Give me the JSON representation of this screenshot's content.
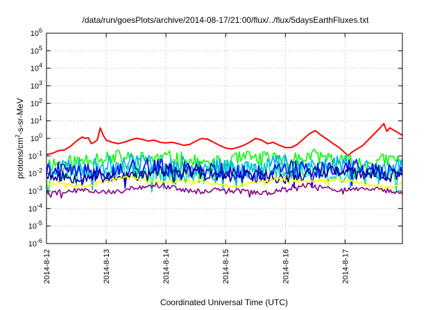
{
  "chart_data": {
    "type": "line",
    "title": "/data/run/goesPlots/archive/2014-08-17/21:00/flux/../flux/5daysEarthFluxes.txt",
    "xlabel": "Coordinated Universal Time (UTC)",
    "ylabel": {
      "base": "protons/cm",
      "sup": "2",
      "rest": "-s-sr-MeV"
    },
    "yscale": "log",
    "ylim_exp": [
      -6,
      6
    ],
    "ytick_exps": [
      -6,
      -5,
      -4,
      -3,
      -2,
      -1,
      0,
      1,
      2,
      3,
      4,
      5,
      6
    ],
    "ytick_base": "10",
    "xlim_days": [
      0,
      5.96
    ],
    "xticks": [
      {
        "day": 0,
        "label": "2014-8-12"
      },
      {
        "day": 1,
        "label": "2014-8-13"
      },
      {
        "day": 2,
        "label": "2014-8-14"
      },
      {
        "day": 3,
        "label": "2014-8-15"
      },
      {
        "day": 4,
        "label": "2014-8-16"
      },
      {
        "day": 5,
        "label": "2014-8-17"
      }
    ],
    "grid": true,
    "legend": "none",
    "series": [
      {
        "color": "#ff0000",
        "points": [
          [
            0.0,
            0.12
          ],
          [
            0.1,
            0.14
          ],
          [
            0.2,
            0.2
          ],
          [
            0.3,
            0.22
          ],
          [
            0.4,
            0.35
          ],
          [
            0.5,
            0.7
          ],
          [
            0.6,
            1.2
          ],
          [
            0.65,
            1.0
          ],
          [
            0.7,
            1.1
          ],
          [
            0.75,
            0.5
          ],
          [
            0.8,
            0.6
          ],
          [
            0.85,
            0.8
          ],
          [
            0.9,
            4.0
          ],
          [
            0.95,
            1.5
          ],
          [
            1.0,
            0.8
          ],
          [
            1.1,
            0.6
          ],
          [
            1.2,
            0.5
          ],
          [
            1.3,
            0.6
          ],
          [
            1.4,
            0.8
          ],
          [
            1.5,
            1.0
          ],
          [
            1.6,
            0.9
          ],
          [
            1.7,
            0.7
          ],
          [
            1.8,
            0.8
          ],
          [
            1.9,
            0.6
          ],
          [
            2.0,
            0.55
          ],
          [
            2.1,
            0.6
          ],
          [
            2.2,
            0.5
          ],
          [
            2.3,
            0.4
          ],
          [
            2.4,
            0.45
          ],
          [
            2.5,
            0.7
          ],
          [
            2.6,
            1.0
          ],
          [
            2.7,
            0.9
          ],
          [
            2.8,
            0.6
          ],
          [
            2.9,
            0.4
          ],
          [
            3.0,
            0.28
          ],
          [
            3.1,
            0.25
          ],
          [
            3.2,
            0.3
          ],
          [
            3.3,
            0.4
          ],
          [
            3.4,
            0.6
          ],
          [
            3.5,
            1.0
          ],
          [
            3.6,
            0.8
          ],
          [
            3.7,
            0.5
          ],
          [
            3.8,
            0.6
          ],
          [
            3.9,
            0.4
          ],
          [
            4.0,
            0.3
          ],
          [
            4.1,
            0.3
          ],
          [
            4.2,
            0.45
          ],
          [
            4.3,
            0.9
          ],
          [
            4.4,
            1.8
          ],
          [
            4.5,
            2.8
          ],
          [
            4.6,
            1.5
          ],
          [
            4.7,
            0.9
          ],
          [
            4.8,
            0.5
          ],
          [
            4.9,
            0.3
          ],
          [
            5.0,
            0.15
          ],
          [
            5.05,
            0.1
          ],
          [
            5.1,
            0.15
          ],
          [
            5.2,
            0.25
          ],
          [
            5.3,
            0.4
          ],
          [
            5.4,
            0.9
          ],
          [
            5.5,
            2.0
          ],
          [
            5.6,
            4.5
          ],
          [
            5.65,
            7.0
          ],
          [
            5.7,
            2.5
          ],
          [
            5.75,
            4.0
          ],
          [
            5.85,
            2.5
          ],
          [
            5.96,
            1.5
          ]
        ]
      },
      {
        "color": "#00ff00",
        "base": 0.06,
        "noise": 0.45,
        "seed": 11
      },
      {
        "color": "#00aaff",
        "base": 0.028,
        "noise": 0.55,
        "seed": 23
      },
      {
        "color": "#00ddaa",
        "base": 0.012,
        "noise": 0.5,
        "seed": 37
      },
      {
        "color": "#0000ff",
        "base": 0.015,
        "noise": 0.5,
        "seed": 41
      },
      {
        "color": "#00008b",
        "base": 0.009,
        "noise": 0.35,
        "seed": 53
      },
      {
        "color": "#ffff00",
        "base": 0.0033,
        "noise": 0.12,
        "seed": 67
      },
      {
        "color": "#800080",
        "base": 0.0012,
        "noise": 0.15,
        "seed": 79
      }
    ]
  }
}
